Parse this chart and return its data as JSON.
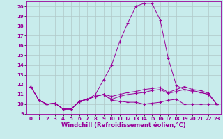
{
  "xlabel": "Windchill (Refroidissement éolien,°C)",
  "bg_color": "#c8ecec",
  "line_color": "#990099",
  "xlim": [
    -0.5,
    23.5
  ],
  "ylim": [
    9,
    20.5
  ],
  "yticks": [
    9,
    10,
    11,
    12,
    13,
    14,
    15,
    16,
    17,
    18,
    19,
    20
  ],
  "xticks": [
    0,
    1,
    2,
    3,
    4,
    5,
    6,
    7,
    8,
    9,
    10,
    11,
    12,
    13,
    14,
    15,
    16,
    17,
    18,
    19,
    20,
    21,
    22,
    23
  ],
  "curve1_x": [
    0,
    1,
    2,
    3,
    4,
    5,
    6,
    7,
    8,
    9,
    10,
    11,
    12,
    13,
    14,
    15,
    16,
    17,
    18,
    19,
    20,
    21,
    22,
    23
  ],
  "curve1_y": [
    11.8,
    10.4,
    10.0,
    10.1,
    9.5,
    9.5,
    10.3,
    10.5,
    10.8,
    11.0,
    10.4,
    10.3,
    10.2,
    10.2,
    10.0,
    10.1,
    10.2,
    10.4,
    10.5,
    10.0,
    10.0,
    10.0,
    10.0,
    10.0
  ],
  "curve2_x": [
    0,
    1,
    2,
    3,
    4,
    5,
    6,
    7,
    8,
    9,
    10,
    11,
    12,
    13,
    14,
    15,
    16,
    17,
    18,
    19,
    20,
    21,
    22,
    23
  ],
  "curve2_y": [
    11.8,
    10.4,
    10.0,
    10.1,
    9.5,
    9.5,
    10.3,
    10.5,
    11.0,
    12.5,
    14.0,
    16.4,
    18.3,
    20.0,
    20.3,
    20.3,
    18.6,
    14.7,
    11.9,
    11.5,
    11.4,
    11.2,
    11.0,
    10.0
  ],
  "curve3_x": [
    0,
    1,
    2,
    3,
    4,
    5,
    6,
    7,
    8,
    9,
    10,
    11,
    12,
    13,
    14,
    15,
    16,
    17,
    18,
    19,
    20,
    21,
    22,
    23
  ],
  "curve3_y": [
    11.8,
    10.4,
    10.0,
    10.1,
    9.5,
    9.5,
    10.3,
    10.5,
    10.8,
    11.0,
    10.8,
    11.0,
    11.2,
    11.3,
    11.5,
    11.6,
    11.7,
    11.2,
    11.5,
    11.8,
    11.5,
    11.4,
    11.1,
    10.0
  ],
  "curve4_x": [
    0,
    1,
    2,
    3,
    4,
    5,
    6,
    7,
    8,
    9,
    10,
    11,
    12,
    13,
    14,
    15,
    16,
    17,
    18,
    19,
    20,
    21,
    22,
    23
  ],
  "curve4_y": [
    11.8,
    10.4,
    10.0,
    10.1,
    9.5,
    9.5,
    10.3,
    10.5,
    10.8,
    11.0,
    10.5,
    10.8,
    11.0,
    11.1,
    11.2,
    11.4,
    11.5,
    11.1,
    11.3,
    11.5,
    11.3,
    11.2,
    11.0,
    10.0
  ],
  "grid_color": "#b0c8c8",
  "tick_fontsize": 5.0,
  "xlabel_fontsize": 6.0,
  "marker": "+"
}
